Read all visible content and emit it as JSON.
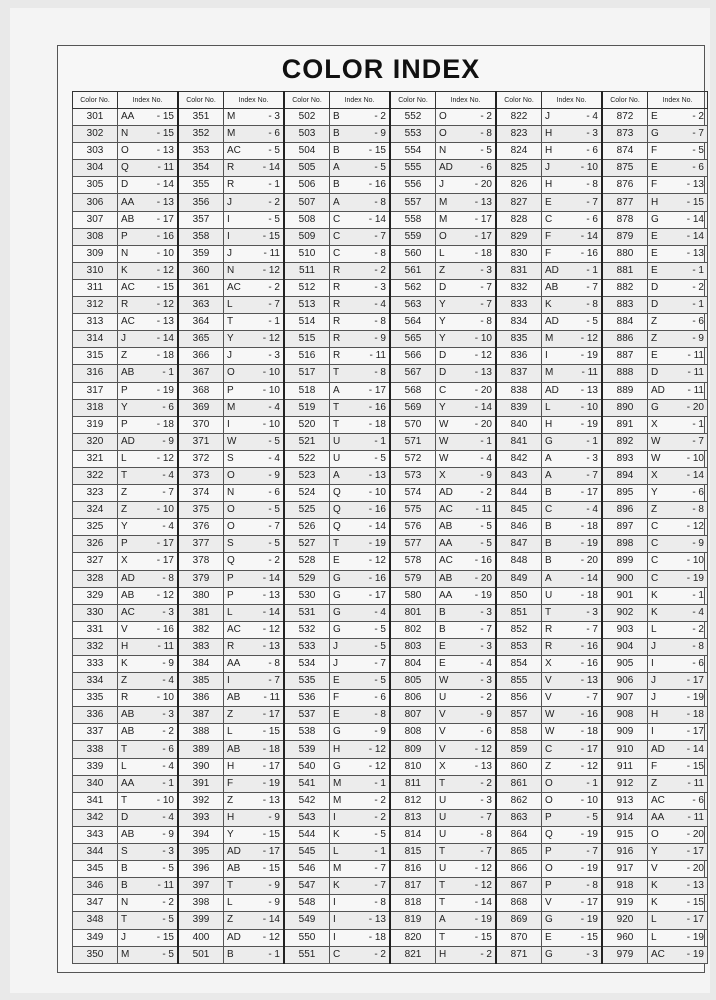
{
  "title": "COLOR INDEX",
  "headers": {
    "color_no": "Color No.",
    "index_no": "Index No."
  },
  "columns": [
    {
      "numbers": [
        "301",
        "302",
        "303",
        "304",
        "305",
        "306",
        "307",
        "308",
        "309",
        "310",
        "311",
        "312",
        "313",
        "314",
        "315",
        "316",
        "317",
        "318",
        "319",
        "320",
        "321",
        "322",
        "323",
        "324",
        "325",
        "326",
        "327",
        "328",
        "329",
        "330",
        "331",
        "332",
        "333",
        "334",
        "335",
        "336",
        "337",
        "338",
        "339",
        "340",
        "341",
        "342",
        "343",
        "344",
        "345",
        "346",
        "347",
        "348",
        "349",
        "350"
      ],
      "indexes": [
        "AA - 15",
        "N - 15",
        "O - 13",
        "Q - 11",
        "D - 14",
        "AA - 13",
        "AB - 17",
        "P - 16",
        "N - 10",
        "K - 12",
        "AC - 15",
        "R - 12",
        "AC - 13",
        "J - 14",
        "Z - 18",
        "AB - 1",
        "P - 19",
        "Y - 6",
        "P - 18",
        "AD - 9",
        "L - 12",
        "T - 4",
        "Z - 7",
        "Z - 10",
        "Y - 4",
        "P - 17",
        "X - 17",
        "AD - 8",
        "AB - 12",
        "AC - 3",
        "V - 16",
        "H - 11",
        "K - 9",
        "Z - 4",
        "R - 10",
        "AB - 3",
        "AB - 2",
        "T - 6",
        "L - 4",
        "AA - 1",
        "T - 10",
        "D - 4",
        "AB - 9",
        "S - 3",
        "B - 5",
        "B - 11",
        "N - 2",
        "T - 5",
        "J - 15",
        "M - 5"
      ]
    },
    {
      "numbers": [
        "351",
        "352",
        "353",
        "354",
        "355",
        "356",
        "357",
        "358",
        "359",
        "360",
        "361",
        "363",
        "364",
        "365",
        "366",
        "367",
        "368",
        "369",
        "370",
        "371",
        "372",
        "373",
        "374",
        "375",
        "376",
        "377",
        "378",
        "379",
        "380",
        "381",
        "382",
        "383",
        "384",
        "385",
        "386",
        "387",
        "388",
        "389",
        "390",
        "391",
        "392",
        "393",
        "394",
        "395",
        "396",
        "397",
        "398",
        "399",
        "400",
        "501"
      ],
      "indexes": [
        "M - 3",
        "M - 6",
        "AC - 5",
        "R - 14",
        "R - 1",
        "J - 2",
        "I - 5",
        "I - 15",
        "J - 11",
        "N - 12",
        "AC - 2",
        "L - 7",
        "T - 1",
        "Y - 12",
        "J - 3",
        "O - 10",
        "P - 10",
        "M - 4",
        "I - 10",
        "W - 5",
        "S - 4",
        "O - 9",
        "N - 6",
        "O - 5",
        "O - 7",
        "S - 5",
        "Q - 2",
        "P - 14",
        "P - 13",
        "L - 14",
        "AC - 12",
        "R - 13",
        "AA - 8",
        "I - 7",
        "AB - 11",
        "Z - 17",
        "L - 15",
        "AB - 18",
        "H - 17",
        "F - 19",
        "Z - 13",
        "H - 9",
        "Y - 15",
        "AD - 17",
        "AB - 15",
        "T - 9",
        "L - 9",
        "Z - 14",
        "AD - 12",
        "B - 1"
      ]
    },
    {
      "numbers": [
        "502",
        "503",
        "504",
        "505",
        "506",
        "507",
        "508",
        "509",
        "510",
        "511",
        "512",
        "513",
        "514",
        "515",
        "516",
        "517",
        "518",
        "519",
        "520",
        "521",
        "522",
        "523",
        "524",
        "525",
        "526",
        "527",
        "528",
        "529",
        "530",
        "531",
        "532",
        "533",
        "534",
        "535",
        "536",
        "537",
        "538",
        "539",
        "540",
        "541",
        "542",
        "543",
        "544",
        "545",
        "546",
        "547",
        "548",
        "549",
        "550",
        "551"
      ],
      "indexes": [
        "B - 2",
        "B - 9",
        "B - 15",
        "A - 5",
        "B - 16",
        "A - 8",
        "C - 14",
        "C - 7",
        "C - 8",
        "R - 2",
        "R - 3",
        "R - 4",
        "R - 8",
        "R - 9",
        "R - 11",
        "T - 8",
        "A - 17",
        "T - 16",
        "T - 18",
        "U - 1",
        "U - 5",
        "A - 13",
        "Q - 10",
        "Q - 16",
        "Q - 14",
        "T - 19",
        "E - 12",
        "G - 16",
        "G - 17",
        "G - 4",
        "G - 5",
        "J - 5",
        "J - 7",
        "E - 5",
        "F - 6",
        "E - 8",
        "G - 9",
        "H - 12",
        "G - 12",
        "M - 1",
        "M - 2",
        "I - 2",
        "K - 5",
        "L - 1",
        "M - 7",
        "K - 7",
        "I - 8",
        "I - 13",
        "I - 18",
        "C - 2"
      ]
    },
    {
      "numbers": [
        "552",
        "553",
        "554",
        "555",
        "556",
        "557",
        "558",
        "559",
        "560",
        "561",
        "562",
        "563",
        "564",
        "565",
        "566",
        "567",
        "568",
        "569",
        "570",
        "571",
        "572",
        "573",
        "574",
        "575",
        "576",
        "577",
        "578",
        "579",
        "580",
        "801",
        "802",
        "803",
        "804",
        "805",
        "806",
        "807",
        "808",
        "809",
        "810",
        "811",
        "812",
        "813",
        "814",
        "815",
        "816",
        "817",
        "818",
        "819",
        "820",
        "821"
      ],
      "indexes": [
        "O - 2",
        "O - 8",
        "N - 5",
        "AD - 6",
        "J - 20",
        "M - 13",
        "M - 17",
        "O - 17",
        "L - 18",
        "Z - 3",
        "D - 7",
        "Y - 7",
        "Y - 8",
        "Y - 10",
        "D - 12",
        "D - 13",
        "C - 20",
        "Y - 14",
        "W - 20",
        "W - 1",
        "W - 4",
        "X - 9",
        "AD - 2",
        "AC - 11",
        "AB - 5",
        "AA - 5",
        "AC - 16",
        "AB - 20",
        "AA - 19",
        "B - 3",
        "B - 7",
        "E - 3",
        "E - 4",
        "W - 3",
        "U - 2",
        "V - 9",
        "V - 6",
        "V - 12",
        "X - 13",
        "T - 2",
        "U - 3",
        "U - 7",
        "U - 8",
        "T - 7",
        "U - 12",
        "T - 12",
        "T - 14",
        "A - 19",
        "T - 15",
        "H - 2"
      ]
    },
    {
      "numbers": [
        "822",
        "823",
        "824",
        "825",
        "826",
        "827",
        "828",
        "829",
        "830",
        "831",
        "832",
        "833",
        "834",
        "835",
        "836",
        "837",
        "838",
        "839",
        "840",
        "841",
        "842",
        "843",
        "844",
        "845",
        "846",
        "847",
        "848",
        "849",
        "850",
        "851",
        "852",
        "853",
        "854",
        "855",
        "856",
        "857",
        "858",
        "859",
        "860",
        "861",
        "862",
        "863",
        "864",
        "865",
        "866",
        "867",
        "868",
        "869",
        "870",
        "871"
      ],
      "indexes": [
        "J - 4",
        "H - 3",
        "H - 6",
        "J - 10",
        "H - 8",
        "E - 7",
        "C - 6",
        "F - 14",
        "F - 16",
        "AD - 1",
        "AB - 7",
        "K - 8",
        "AD - 5",
        "M - 12",
        "I - 19",
        "M - 11",
        "AD - 13",
        "L - 10",
        "H - 19",
        "G - 1",
        "A - 3",
        "A - 7",
        "B - 17",
        "C - 4",
        "B - 18",
        "B - 19",
        "B - 20",
        "A - 14",
        "U - 18",
        "T - 3",
        "R - 7",
        "R - 16",
        "X - 16",
        "V - 13",
        "V - 7",
        "W - 16",
        "W - 18",
        "C - 17",
        "Z - 12",
        "O - 1",
        "O - 10",
        "P - 5",
        "Q - 19",
        "P - 7",
        "O - 19",
        "P - 8",
        "V - 17",
        "G - 19",
        "E - 15",
        "G - 3"
      ]
    },
    {
      "numbers": [
        "872",
        "873",
        "874",
        "875",
        "876",
        "877",
        "878",
        "879",
        "880",
        "881",
        "882",
        "883",
        "884",
        "886",
        "887",
        "888",
        "889",
        "890",
        "891",
        "892",
        "893",
        "894",
        "895",
        "896",
        "897",
        "898",
        "899",
        "900",
        "901",
        "902",
        "903",
        "904",
        "905",
        "906",
        "907",
        "908",
        "909",
        "910",
        "911",
        "912",
        "913",
        "914",
        "915",
        "916",
        "917",
        "918",
        "919",
        "920",
        "960",
        "979"
      ],
      "indexes": [
        "E - 2",
        "G - 7",
        "F - 5",
        "E - 6",
        "F - 13",
        "H - 15",
        "G - 14",
        "E - 14",
        "E - 13",
        "E - 1",
        "D - 2",
        "D - 1",
        "Z - 6",
        "Z - 9",
        "E - 11",
        "D - 11",
        "AD - 11",
        "G - 20",
        "X - 1",
        "W - 7",
        "W - 10",
        "X - 14",
        "Y - 6",
        "Z - 8",
        "C - 12",
        "C - 9",
        "C - 10",
        "C - 19",
        "K - 1",
        "K - 4",
        "L - 2",
        "J - 8",
        "I - 6",
        "J - 17",
        "J - 19",
        "H - 18",
        "I - 17",
        "AD - 14",
        "F - 15",
        "Z - 11",
        "AC - 6",
        "AA - 11",
        "O - 20",
        "Y - 17",
        "V - 20",
        "K - 13",
        "K - 15",
        "L - 17",
        "L - 19",
        "AC - 19"
      ]
    }
  ]
}
